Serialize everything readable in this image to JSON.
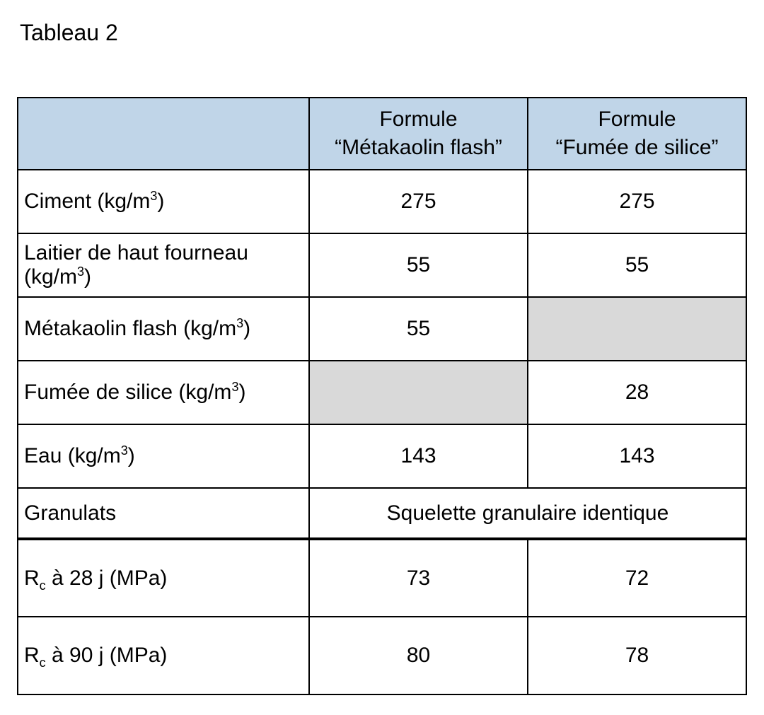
{
  "title": "Tableau 2",
  "colors": {
    "header_bg": "#c0d5e8",
    "shaded_bg": "#d9d9d9",
    "background": "#ffffff",
    "border": "#000000",
    "text": "#000000"
  },
  "header": {
    "blank": "",
    "col1_line1": "Formule",
    "col1_line2": "“Métakaolin flash”",
    "col2_line1": "Formule",
    "col2_line2": "“Fumée de silice”"
  },
  "rows": {
    "ciment": {
      "label_pre": "Ciment (kg/m",
      "label_post": ")",
      "v1": "275",
      "v2": "275"
    },
    "laitier": {
      "label_pre": "Laitier de haut fourneau (kg/m",
      "label_post": ")",
      "v1": "55",
      "v2": "55"
    },
    "metakaolin": {
      "label_pre": "Métakaolin flash (kg/m",
      "label_post": ")",
      "v1": "55",
      "v2": ""
    },
    "fumee": {
      "label_pre": "Fumée de silice (kg/m",
      "label_post": ")",
      "v1": "",
      "v2": "28"
    },
    "eau": {
      "label_pre": "Eau (kg/m",
      "label_post": ")",
      "v1": "143",
      "v2": "143"
    },
    "granulats": {
      "label": "Granulats",
      "merged": "Squelette granulaire identique"
    },
    "rc28": {
      "label_pre": "R",
      "label_mid": " à 28 j (MPa)",
      "v1": "73",
      "v2": "72"
    },
    "rc90": {
      "label_pre": "R",
      "label_mid": " à 90 j (MPa)",
      "v1": "80",
      "v2": "78"
    }
  }
}
